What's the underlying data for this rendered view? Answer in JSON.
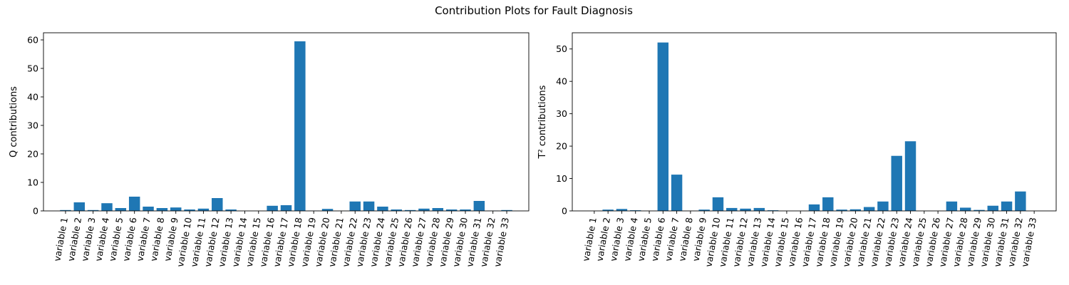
{
  "suptitle": "Contribution Plots for Fault Diagnosis",
  "bar_color": "#1f77b4",
  "chart_data": [
    {
      "type": "bar",
      "title": "",
      "xlabel": "",
      "ylabel": "Q contributions",
      "ylim": [
        0,
        62.5
      ],
      "yticks": [
        0,
        10,
        20,
        30,
        40,
        50,
        60
      ],
      "grid": false,
      "categories": [
        "variable 1",
        "variable 2",
        "variable 3",
        "variable 4",
        "variable 5",
        "variable 6",
        "variable 7",
        "variable 8",
        "variable 9",
        "variable 10",
        "variable 11",
        "variable 12",
        "variable 13",
        "variable 14",
        "variable 15",
        "variable 16",
        "variable 17",
        "variable 18",
        "variable 19",
        "variable 20",
        "variable 21",
        "variable 22",
        "variable 23",
        "variable 24",
        "variable 25",
        "variable 26",
        "variable 27",
        "variable 28",
        "variable 29",
        "variable 30",
        "variable 31",
        "variable 32",
        "variable 33"
      ],
      "values": [
        0.3,
        3.0,
        0.3,
        2.7,
        1.0,
        5.0,
        1.5,
        1.0,
        1.2,
        0.5,
        0.8,
        4.5,
        0.5,
        0.0,
        0.0,
        1.8,
        2.0,
        59.5,
        0.1,
        0.7,
        0.0,
        3.3,
        3.3,
        1.5,
        0.5,
        0.3,
        0.8,
        1.0,
        0.5,
        0.5,
        3.5,
        0.1,
        0.3
      ]
    },
    {
      "type": "bar",
      "title": "",
      "xlabel": "",
      "ylabel": "T² contributions",
      "ylim": [
        0,
        55
      ],
      "yticks": [
        0,
        10,
        20,
        30,
        40,
        50
      ],
      "grid": false,
      "categories": [
        "variable 1",
        "variable 2",
        "variable 3",
        "variable 4",
        "variable 5",
        "variable 6",
        "variable 7",
        "variable 8",
        "variable 9",
        "variable 10",
        "variable 11",
        "variable 12",
        "variable 13",
        "variable 14",
        "variable 15",
        "variable 16",
        "variable 17",
        "variable 18",
        "variable 19",
        "variable 20",
        "variable 21",
        "variable 22",
        "variable 23",
        "variable 24",
        "variable 25",
        "variable 26",
        "variable 27",
        "variable 28",
        "variable 29",
        "variable 30",
        "variable 31",
        "variable 32",
        "variable 33"
      ],
      "values": [
        0.0,
        0.4,
        0.6,
        0.2,
        0.0,
        52.0,
        11.2,
        0.0,
        0.4,
        4.2,
        0.9,
        0.7,
        0.9,
        0.2,
        0.0,
        0.0,
        2.0,
        4.2,
        0.4,
        0.5,
        1.2,
        2.9,
        17.0,
        21.5,
        0.0,
        0.0,
        2.9,
        1.0,
        0.3,
        1.6,
        2.9,
        6.0,
        0.0
      ]
    }
  ]
}
